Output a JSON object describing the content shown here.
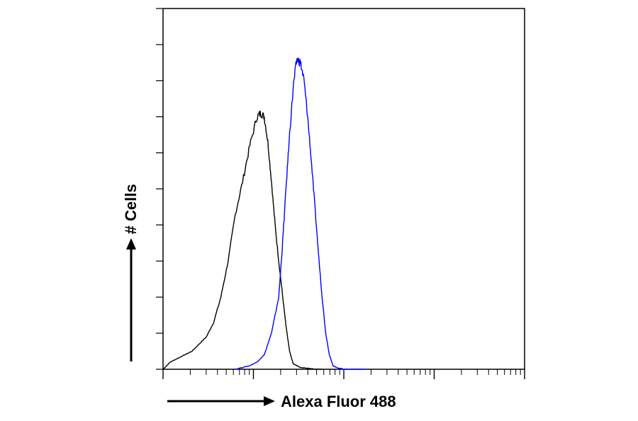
{
  "chart_data": {
    "type": "line",
    "title": "",
    "xlabel": "Alexa Fluor 488",
    "ylabel": "# Cells",
    "xscale": "log",
    "x_decades": 4,
    "xlim": [
      0,
      1
    ],
    "ylim": [
      0,
      1
    ],
    "grid": false,
    "legend": "none",
    "series": [
      {
        "color": "#000000",
        "x": [
          0.0,
          0.02,
          0.04,
          0.06,
          0.08,
          0.1,
          0.12,
          0.14,
          0.16,
          0.18,
          0.2,
          0.22,
          0.24,
          0.26,
          0.27,
          0.28,
          0.29,
          0.3,
          0.31,
          0.32,
          0.33,
          0.34,
          0.35,
          0.36,
          0.37,
          0.38,
          0.4,
          0.42,
          0.44
        ],
        "y": [
          0.0,
          0.02,
          0.03,
          0.04,
          0.05,
          0.07,
          0.09,
          0.13,
          0.2,
          0.3,
          0.43,
          0.52,
          0.62,
          0.7,
          0.71,
          0.7,
          0.63,
          0.52,
          0.4,
          0.3,
          0.21,
          0.12,
          0.05,
          0.015,
          0.01,
          0.005,
          0.003,
          0.0,
          0.0
        ]
      },
      {
        "color": "#0000ff",
        "x": [
          0.2,
          0.22,
          0.24,
          0.26,
          0.28,
          0.3,
          0.32,
          0.33,
          0.34,
          0.35,
          0.36,
          0.37,
          0.38,
          0.39,
          0.4,
          0.41,
          0.42,
          0.43,
          0.44,
          0.45,
          0.46,
          0.47,
          0.48,
          0.5,
          0.52,
          0.54,
          0.56
        ],
        "y": [
          0.0,
          0.005,
          0.01,
          0.02,
          0.04,
          0.1,
          0.2,
          0.34,
          0.5,
          0.65,
          0.78,
          0.86,
          0.85,
          0.8,
          0.7,
          0.58,
          0.45,
          0.32,
          0.2,
          0.1,
          0.04,
          0.01,
          0.005,
          0.0,
          0.0,
          0.0,
          0.0
        ]
      }
    ]
  }
}
